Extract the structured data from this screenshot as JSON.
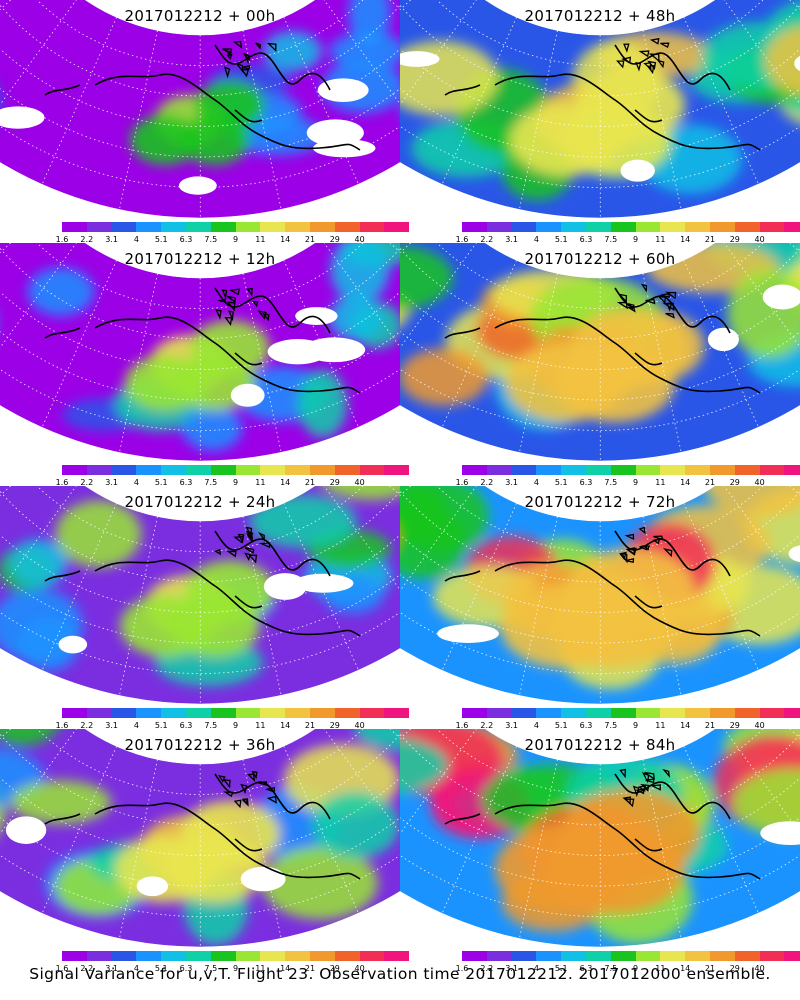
{
  "panels": [
    {
      "title": "2017012212 + 00h",
      "lead": 0
    },
    {
      "title": "2017012212 + 48h",
      "lead": 48
    },
    {
      "title": "2017012212 + 12h",
      "lead": 12
    },
    {
      "title": "2017012212 + 60h",
      "lead": 60
    },
    {
      "title": "2017012212 + 24h",
      "lead": 24
    },
    {
      "title": "2017012212 + 72h",
      "lead": 72
    },
    {
      "title": "2017012212 + 36h",
      "lead": 36
    },
    {
      "title": "2017012212 + 84h",
      "lead": 84
    }
  ],
  "colorbar": {
    "colors": [
      "#9b00e6",
      "#7b2ee0",
      "#2a56e8",
      "#1b93ff",
      "#12c0e6",
      "#10d0a8",
      "#19c41f",
      "#99e633",
      "#e8e650",
      "#f2c241",
      "#f09a2e",
      "#f0642c",
      "#f22d56",
      "#f0147e"
    ],
    "tick_labels": [
      "1.6",
      "2.2",
      "3.1",
      "4",
      "5.1",
      "6.3",
      "7.5",
      "9",
      "11",
      "14",
      "21",
      "29",
      "40"
    ]
  },
  "caption": "Signal Variance for u,v,T. Flight 23. Observation time 2017012212. 2017012000 ensemble."
}
